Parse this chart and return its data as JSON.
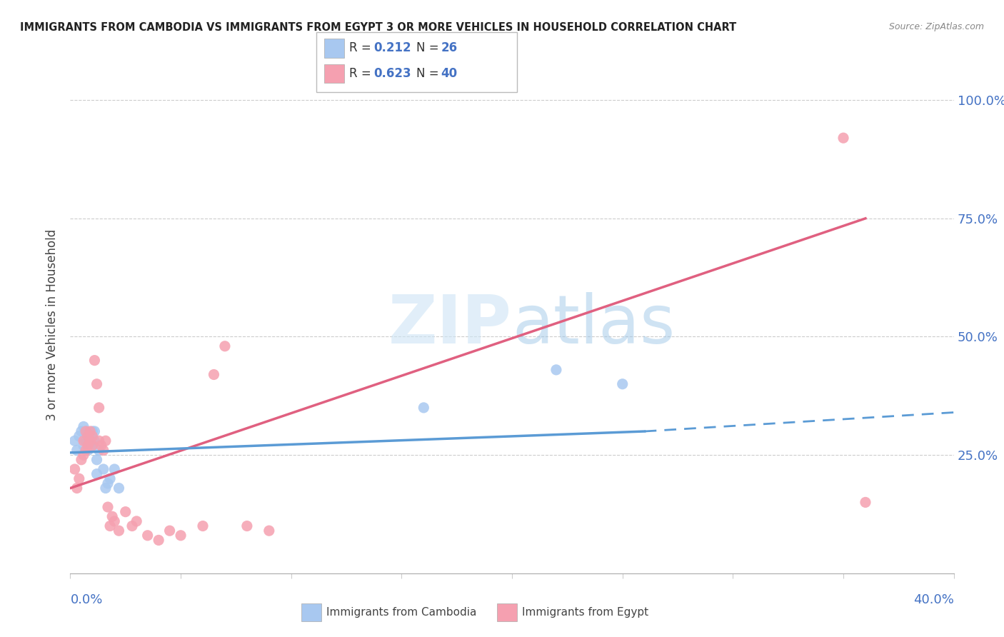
{
  "title": "IMMIGRANTS FROM CAMBODIA VS IMMIGRANTS FROM EGYPT 3 OR MORE VEHICLES IN HOUSEHOLD CORRELATION CHART",
  "source": "Source: ZipAtlas.com",
  "ylabel_label": "3 or more Vehicles in Household",
  "legend_cambodia": "Immigrants from Cambodia",
  "legend_egypt": "Immigrants from Egypt",
  "color_cambodia": "#a8c8f0",
  "color_egypt": "#f5a0b0",
  "color_trendline_cambodia": "#5b9bd5",
  "color_trendline_egypt": "#e06080",
  "color_text_blue": "#4472C4",
  "xlim": [
    0.0,
    0.4
  ],
  "ylim": [
    0.0,
    1.05
  ],
  "cambodia_x": [
    0.002,
    0.003,
    0.004,
    0.005,
    0.006,
    0.006,
    0.007,
    0.007,
    0.008,
    0.008,
    0.009,
    0.009,
    0.01,
    0.01,
    0.011,
    0.011,
    0.012,
    0.012,
    0.013,
    0.015,
    0.016,
    0.017,
    0.018,
    0.02,
    0.022,
    0.16,
    0.22,
    0.25
  ],
  "cambodia_y": [
    0.28,
    0.26,
    0.29,
    0.3,
    0.27,
    0.31,
    0.28,
    0.3,
    0.26,
    0.28,
    0.27,
    0.29,
    0.27,
    0.3,
    0.28,
    0.3,
    0.21,
    0.24,
    0.26,
    0.22,
    0.18,
    0.19,
    0.2,
    0.22,
    0.18,
    0.35,
    0.43,
    0.4
  ],
  "egypt_x": [
    0.002,
    0.003,
    0.004,
    0.005,
    0.006,
    0.006,
    0.007,
    0.007,
    0.008,
    0.008,
    0.009,
    0.009,
    0.01,
    0.01,
    0.011,
    0.012,
    0.013,
    0.013,
    0.014,
    0.015,
    0.016,
    0.017,
    0.018,
    0.019,
    0.02,
    0.022,
    0.025,
    0.028,
    0.03,
    0.035,
    0.04,
    0.045,
    0.05,
    0.06,
    0.065,
    0.07,
    0.08,
    0.09,
    0.35,
    0.36
  ],
  "egypt_y": [
    0.22,
    0.18,
    0.2,
    0.24,
    0.25,
    0.28,
    0.26,
    0.3,
    0.27,
    0.29,
    0.28,
    0.3,
    0.27,
    0.29,
    0.45,
    0.4,
    0.28,
    0.35,
    0.27,
    0.26,
    0.28,
    0.14,
    0.1,
    0.12,
    0.11,
    0.09,
    0.13,
    0.1,
    0.11,
    0.08,
    0.07,
    0.09,
    0.08,
    0.1,
    0.42,
    0.48,
    0.1,
    0.09,
    0.92,
    0.15
  ],
  "trendline_egypt_x0": 0.0,
  "trendline_egypt_y0": 0.18,
  "trendline_egypt_x1": 0.36,
  "trendline_egypt_y1": 0.75,
  "trendline_cambodia_x0": 0.0,
  "trendline_cambodia_y0": 0.255,
  "trendline_cambodia_x1": 0.26,
  "trendline_cambodia_y1": 0.3,
  "trendline_cambodia_dash_x0": 0.26,
  "trendline_cambodia_dash_y0": 0.3,
  "trendline_cambodia_dash_x1": 0.4,
  "trendline_cambodia_dash_y1": 0.34
}
